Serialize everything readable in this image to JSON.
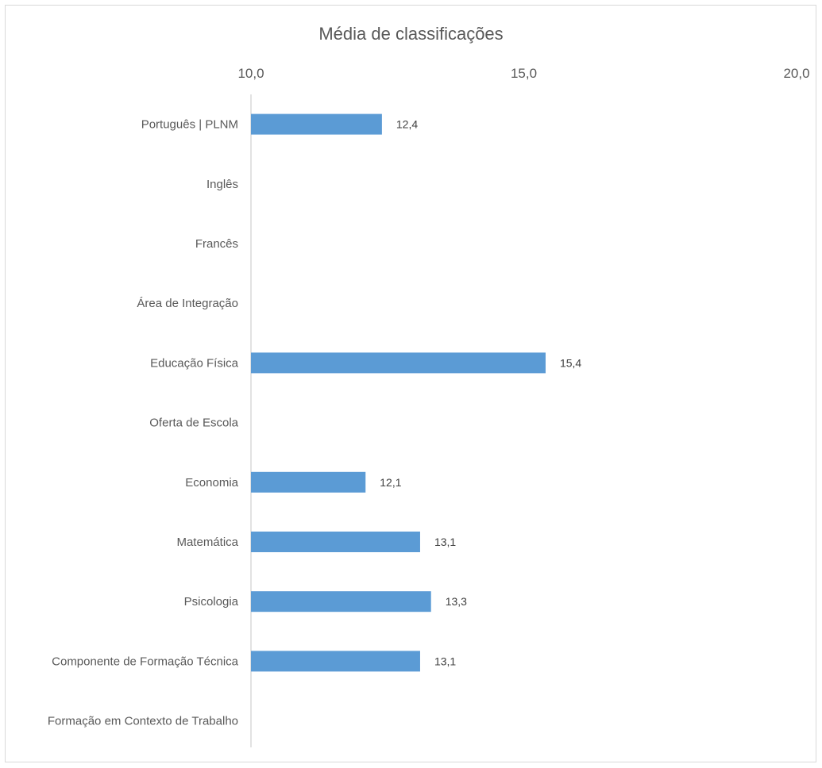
{
  "chart_data": {
    "type": "bar",
    "orientation": "horizontal",
    "title": "Média de classificações",
    "xlim": [
      10,
      20
    ],
    "ticks": [
      "10,0",
      "15,0",
      "20,0"
    ],
    "tick_values": [
      10,
      15,
      20
    ],
    "axis_position": "top",
    "grid": false,
    "color": "#5b9bd5",
    "categories": [
      "Português | PLNM",
      "Inglês",
      "Francês",
      "Área de Integração",
      "Educação Física",
      "Oferta de Escola",
      "Economia",
      "Matemática",
      "Psicologia",
      "Componente de Formação Técnica",
      "Formação em Contexto de Trabalho"
    ],
    "values": [
      12.4,
      null,
      null,
      null,
      15.4,
      null,
      12.1,
      13.1,
      13.3,
      13.1,
      null
    ],
    "data_labels": [
      "12,4",
      "",
      "",
      "",
      "15,4",
      "",
      "12,1",
      "13,1",
      "13,3",
      "13,1",
      ""
    ]
  }
}
